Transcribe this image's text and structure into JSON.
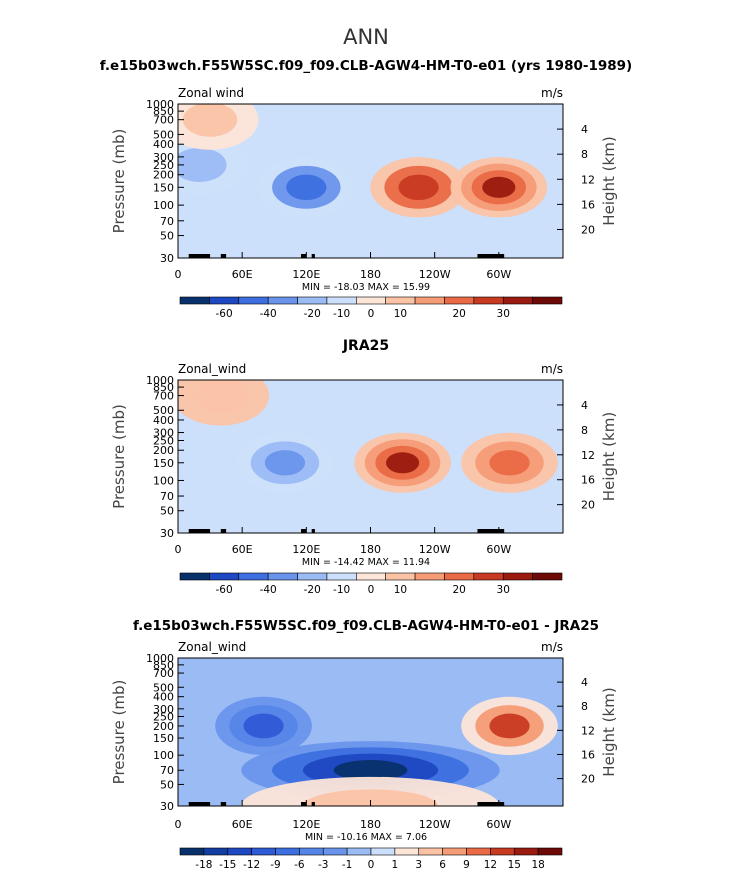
{
  "figure": {
    "main_title": "ANN",
    "pressure_axis_label": "Pressure (mb)",
    "height_axis_label": "Height (km)",
    "pressure_ticks": [
      "30",
      "50",
      "70",
      "100",
      "150",
      "200",
      "250",
      "300",
      "400",
      "500",
      "700",
      "850",
      "1000"
    ],
    "height_ticks": [
      "4",
      "8",
      "12",
      "16",
      "20"
    ],
    "x_ticks": [
      "0",
      "60E",
      "120E",
      "180",
      "120W",
      "60W"
    ]
  },
  "chart_data": [
    {
      "type": "heatmap",
      "title": "f.e15b03wch.F55W5SC.f09_f09.CLB-AGW4-HM-T0-e01 (yrs 1980-1989)",
      "left_label": "Zonal wind",
      "units": "m/s",
      "xlabel": "",
      "ylabel": "Pressure (mb)",
      "ylabel_right": "Height (km)",
      "xlim": [
        0,
        360
      ],
      "ylim": [
        1000,
        30
      ],
      "x_ticks": [
        "0",
        "60E",
        "120E",
        "180",
        "120W",
        "60W"
      ],
      "min_max_text": "MIN = -18.03   MAX =  15.99",
      "min": -18.03,
      "max": 15.99,
      "colorbar": {
        "levels": [
          "-60",
          "-40",
          "-20",
          "-10",
          "0",
          "10",
          "20",
          "30"
        ],
        "colors": [
          "#08306b",
          "#1d48c2",
          "#3d6fe0",
          "#6a93ec",
          "#9bbbf5",
          "#cde0fb",
          "#fde5d8",
          "#fbc3a6",
          "#f59b76",
          "#e96a45",
          "#c83a22",
          "#9a1a10",
          "#6d0a06"
        ]
      },
      "features": [
        {
          "x": 120,
          "y": 150,
          "value": -12
        },
        {
          "x": 225,
          "y": 150,
          "value": 13
        },
        {
          "x": 300,
          "y": 150,
          "value": 14
        },
        {
          "x": 20,
          "y": 250,
          "value": -5
        },
        {
          "x": 30,
          "y": 700,
          "value": 3
        }
      ]
    },
    {
      "type": "heatmap",
      "title": "JRA25",
      "left_label": "Zonal_wind",
      "units": "m/s",
      "xlabel": "",
      "ylabel": "Pressure (mb)",
      "ylabel_right": "Height (km)",
      "xlim": [
        0,
        360
      ],
      "ylim": [
        1000,
        30
      ],
      "x_ticks": [
        "0",
        "60E",
        "120E",
        "180",
        "120W",
        "60W"
      ],
      "min_max_text": "MIN = -14.42   MAX =  11.94",
      "min": -14.42,
      "max": 11.94,
      "colorbar": {
        "levels": [
          "-60",
          "-40",
          "-20",
          "-10",
          "0",
          "10",
          "20",
          "30"
        ],
        "colors": [
          "#08306b",
          "#1d48c2",
          "#3d6fe0",
          "#6a93ec",
          "#9bbbf5",
          "#cde0fb",
          "#fde5d8",
          "#fbc3a6",
          "#f59b76",
          "#e96a45",
          "#c83a22",
          "#9a1a10",
          "#6d0a06"
        ]
      },
      "features": [
        {
          "x": 100,
          "y": 150,
          "value": -8
        },
        {
          "x": 210,
          "y": 150,
          "value": 11
        },
        {
          "x": 310,
          "y": 150,
          "value": 8
        },
        {
          "x": 40,
          "y": 700,
          "value": 3
        }
      ]
    },
    {
      "type": "heatmap",
      "title": "f.e15b03wch.F55W5SC.f09_f09.CLB-AGW4-HM-T0-e01 - JRA25",
      "left_label": "Zonal_wind",
      "units": "m/s",
      "xlabel": "",
      "ylabel": "Pressure (mb)",
      "ylabel_right": "Height (km)",
      "xlim": [
        0,
        360
      ],
      "ylim": [
        1000,
        30
      ],
      "x_ticks": [
        "0",
        "60E",
        "120E",
        "180",
        "120W",
        "60W"
      ],
      "min_max_text": "MIN = -10.16   MAX =   7.06",
      "min": -10.16,
      "max": 7.06,
      "colorbar": {
        "levels": [
          "-18",
          "-15",
          "-12",
          "-9",
          "-6",
          "-3",
          "-1",
          "0",
          "1",
          "3",
          "6",
          "9",
          "12",
          "15",
          "18"
        ],
        "colors": [
          "#08306b",
          "#123ea3",
          "#1d48c2",
          "#2e5ad6",
          "#3d6fe0",
          "#5585e8",
          "#6a93ec",
          "#9bbbf5",
          "#cde0fb",
          "#fde5d8",
          "#fbc3a6",
          "#f59b76",
          "#e96a45",
          "#c83a22",
          "#9a1a10",
          "#6d0a06"
        ]
      },
      "features": [
        {
          "x": 180,
          "y": 70,
          "value": -10
        },
        {
          "x": 80,
          "y": 200,
          "value": -6
        },
        {
          "x": 310,
          "y": 200,
          "value": 7
        },
        {
          "x": 180,
          "y": 30,
          "value": 4
        }
      ]
    }
  ]
}
